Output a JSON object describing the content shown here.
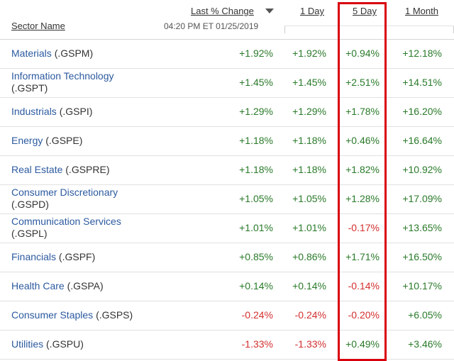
{
  "header": {
    "sector_name": "Sector Name",
    "last_change": "Last % Change",
    "timestamp": "04:20 PM ET 01/25/2019",
    "day1": "1 Day",
    "day5": "5 Day",
    "month1": "1 Month"
  },
  "rows": [
    {
      "name": "Materials",
      "ticker": "(.GSPM)",
      "last": "+1.92%",
      "d1": "+1.92%",
      "d5": "+0.94%",
      "m1": "+12.18%"
    },
    {
      "name": "Information Technology",
      "ticker": "(.GSPT)",
      "last": "+1.45%",
      "d1": "+1.45%",
      "d5": "+2.51%",
      "m1": "+14.51%"
    },
    {
      "name": "Industrials",
      "ticker": "(.GSPI)",
      "last": "+1.29%",
      "d1": "+1.29%",
      "d5": "+1.78%",
      "m1": "+16.20%"
    },
    {
      "name": "Energy",
      "ticker": "(.GSPE)",
      "last": "+1.18%",
      "d1": "+1.18%",
      "d5": "+0.46%",
      "m1": "+16.64%"
    },
    {
      "name": "Real Estate",
      "ticker": "(.GSPRE)",
      "last": "+1.18%",
      "d1": "+1.18%",
      "d5": "+1.82%",
      "m1": "+10.92%"
    },
    {
      "name": "Consumer Discretionary",
      "ticker": "(.GSPD)",
      "last": "+1.05%",
      "d1": "+1.05%",
      "d5": "+1.28%",
      "m1": "+17.09%"
    },
    {
      "name": "Communication Services",
      "ticker": "(.GSPL)",
      "last": "+1.01%",
      "d1": "+1.01%",
      "d5": "-0.17%",
      "m1": "+13.65%"
    },
    {
      "name": "Financials",
      "ticker": "(.GSPF)",
      "last": "+0.85%",
      "d1": "+0.86%",
      "d5": "+1.71%",
      "m1": "+16.50%"
    },
    {
      "name": "Health Care",
      "ticker": "(.GSPA)",
      "last": "+0.14%",
      "d1": "+0.14%",
      "d5": "-0.14%",
      "m1": "+10.17%"
    },
    {
      "name": "Consumer Staples",
      "ticker": "(.GSPS)",
      "last": "-0.24%",
      "d1": "-0.24%",
      "d5": "-0.20%",
      "m1": "+6.05%"
    },
    {
      "name": "Utilities",
      "ticker": "(.GSPU)",
      "last": "-1.33%",
      "d1": "-1.33%",
      "d5": "+0.49%",
      "m1": "+3.46%"
    }
  ],
  "colors": {
    "positive": "#2a7a2a",
    "negative": "#d32f2f",
    "link": "#2c5aa0",
    "highlight_box": "#d9000d"
  }
}
